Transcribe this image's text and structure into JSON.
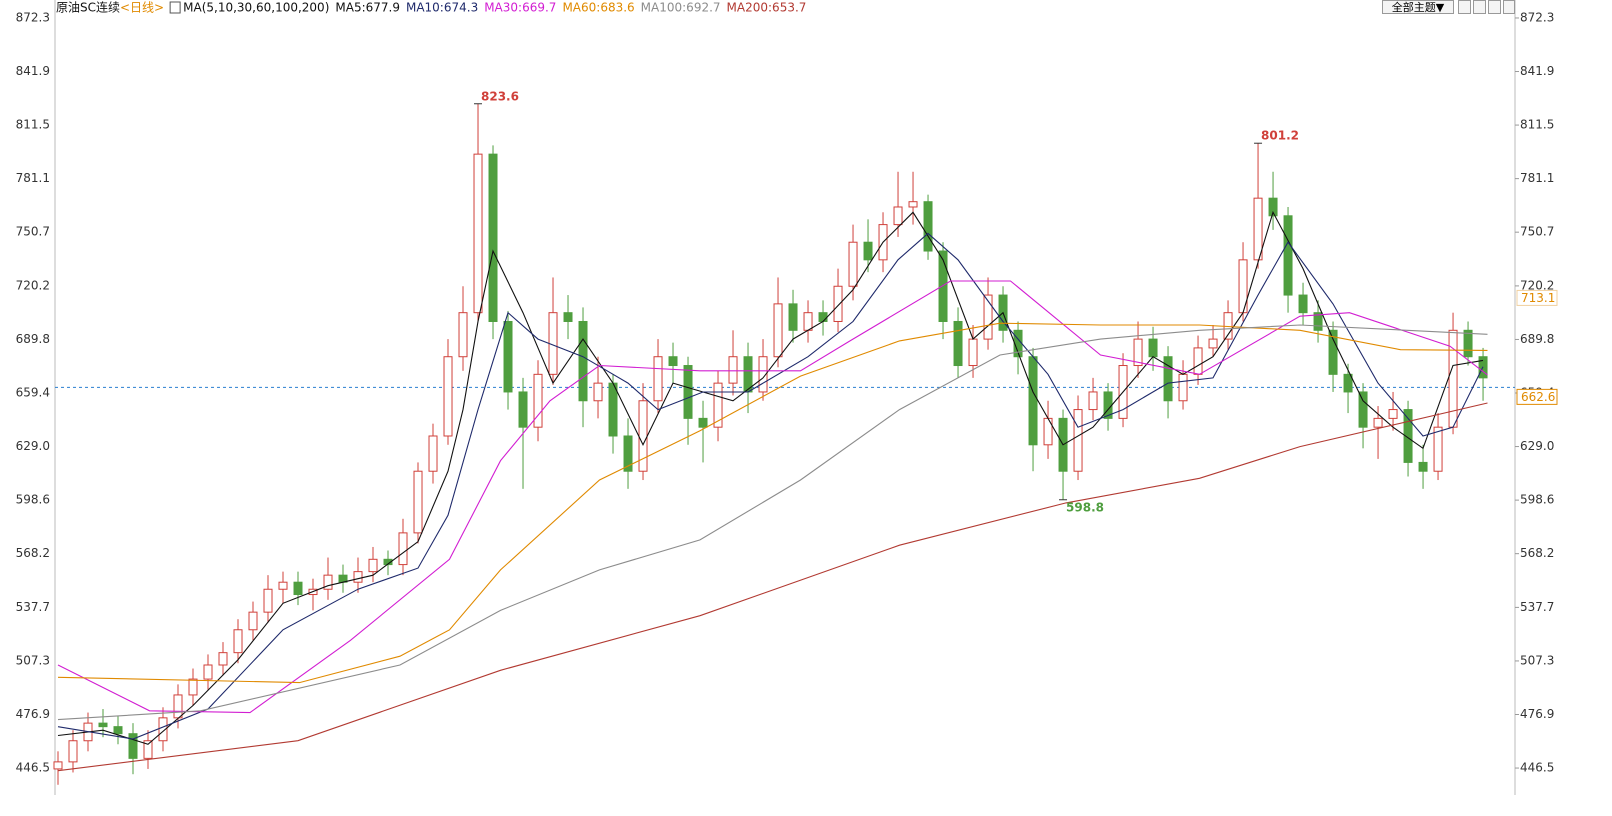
{
  "chart_data": {
    "type": "candlestick",
    "title": "原油SC连续",
    "period": "<日线>",
    "indicator": "MA(5,10,30,60,100,200)",
    "toolbar": {
      "theme_button": "全部主题▼"
    },
    "up_color": "#d0403a",
    "down_color": "#4f9e3f",
    "xlim": [
      -0.2,
      97.13
    ],
    "ylim": [
      431.2,
      882.5
    ],
    "yticks": [
      872.3,
      841.9,
      811.5,
      781.1,
      750.7,
      720.2,
      689.8,
      659.4,
      {
        "value": 629,
        "label": "629.0"
      },
      598.6,
      568.2,
      537.7,
      507.3,
      476.9,
      446.5
    ],
    "open": [
      446,
      450,
      462,
      472,
      470,
      466,
      452,
      462,
      475,
      488,
      497,
      505,
      512,
      525,
      535,
      548,
      552,
      545,
      548,
      556,
      552,
      558,
      565,
      562,
      580,
      615,
      635,
      680,
      705,
      795,
      700,
      660,
      640,
      670,
      705,
      700,
      655,
      665,
      635,
      615,
      655,
      680,
      675,
      645,
      640,
      665,
      680,
      660,
      680,
      710,
      695,
      705,
      700,
      720,
      745,
      735,
      755,
      765,
      768,
      740,
      700,
      675,
      690,
      715,
      695,
      680,
      630,
      645,
      615,
      650,
      660,
      645,
      675,
      690,
      680,
      655,
      670,
      685,
      690,
      705,
      735,
      770,
      760,
      715,
      705,
      695,
      670,
      660,
      640,
      645,
      650,
      620,
      615,
      640,
      695,
      680
    ],
    "high": [
      456,
      468,
      478,
      480,
      476,
      472,
      468,
      481,
      494,
      503,
      511,
      518,
      531,
      541,
      556,
      558,
      558,
      554,
      566,
      562,
      566,
      572,
      570,
      588,
      620,
      642,
      690,
      720,
      823.6,
      800,
      706,
      668,
      678,
      725,
      715,
      708,
      680,
      670,
      645,
      665,
      690,
      688,
      680,
      655,
      672,
      695,
      688,
      690,
      725,
      718,
      712,
      712,
      730,
      755,
      758,
      762,
      785,
      785,
      772,
      745,
      708,
      698,
      725,
      720,
      700,
      685,
      655,
      650,
      658,
      668,
      665,
      682,
      700,
      697,
      686,
      678,
      692,
      698,
      712,
      745,
      801.2,
      785,
      765,
      722,
      712,
      700,
      676,
      665,
      652,
      660,
      655,
      630,
      648,
      705,
      700,
      685
    ],
    "low": [
      437,
      444,
      456,
      464,
      460,
      443,
      446,
      456,
      469,
      482,
      491,
      499,
      506,
      519,
      529,
      540,
      539,
      536,
      542,
      546,
      546,
      552,
      556,
      556,
      574,
      608,
      630,
      672,
      700,
      690,
      650,
      605,
      632,
      664,
      690,
      640,
      645,
      625,
      605,
      610,
      648,
      665,
      630,
      620,
      632,
      658,
      648,
      655,
      674,
      688,
      688,
      692,
      694,
      712,
      728,
      728,
      748,
      755,
      735,
      690,
      668,
      668,
      684,
      688,
      670,
      615,
      622,
      598.8,
      610,
      644,
      638,
      640,
      668,
      672,
      645,
      650,
      664,
      680,
      684,
      700,
      730,
      752,
      705,
      698,
      688,
      660,
      648,
      628,
      622,
      638,
      612,
      605,
      610,
      636,
      675,
      655
    ],
    "close": [
      450,
      462,
      472,
      470,
      466,
      452,
      462,
      475,
      488,
      497,
      505,
      512,
      525,
      535,
      548,
      552,
      545,
      548,
      556,
      552,
      558,
      565,
      562,
      580,
      615,
      635,
      680,
      705,
      795,
      700,
      660,
      640,
      670,
      705,
      700,
      655,
      665,
      635,
      615,
      655,
      680,
      675,
      645,
      640,
      665,
      680,
      660,
      680,
      710,
      695,
      705,
      700,
      720,
      745,
      735,
      755,
      765,
      768,
      740,
      700,
      675,
      690,
      715,
      695,
      680,
      630,
      645,
      615,
      650,
      660,
      645,
      675,
      690,
      680,
      655,
      670,
      685,
      690,
      705,
      735,
      770,
      760,
      715,
      705,
      695,
      670,
      660,
      640,
      645,
      650,
      620,
      615,
      640,
      695,
      680,
      668
    ],
    "series": [
      {
        "name": "MA5:677.9",
        "color": "#111111",
        "x": [
          0,
          3,
          6,
          9,
          12,
          15,
          18,
          21,
          24,
          26,
          27,
          28,
          29,
          31,
          33,
          35,
          37,
          39,
          41,
          43,
          45,
          47,
          49,
          51,
          53,
          55,
          57,
          59,
          61,
          63,
          65,
          67,
          69,
          71,
          73,
          75,
          77,
          79,
          81,
          83,
          85,
          87,
          89,
          91,
          93,
          95
        ],
        "values": [
          465,
          468,
          460,
          482,
          508,
          540,
          550,
          556,
          575,
          615,
          650,
          700,
          740,
          705,
          665,
          690,
          665,
          630,
          665,
          660,
          655,
          668,
          690,
          700,
          718,
          745,
          762,
          735,
          690,
          705,
          660,
          630,
          640,
          660,
          680,
          670,
          680,
          705,
          762,
          730,
          690,
          655,
          640,
          628,
          675,
          677.9
        ]
      },
      {
        "name": "MA10:674.3",
        "color": "#1f2a6b",
        "x": [
          0,
          5,
          10,
          15,
          20,
          24,
          26,
          28,
          30,
          32,
          35,
          38,
          40,
          43,
          46,
          50,
          53,
          56,
          58,
          60,
          63,
          66,
          68,
          71,
          74,
          77,
          80,
          82,
          85,
          88,
          91,
          93,
          95
        ],
        "values": [
          470,
          463,
          480,
          525,
          548,
          560,
          590,
          650,
          705,
          690,
          680,
          665,
          650,
          660,
          660,
          680,
          700,
          735,
          750,
          735,
          700,
          670,
          640,
          650,
          665,
          668,
          715,
          745,
          710,
          665,
          635,
          640,
          674.3
        ]
      },
      {
        "name": "MA30:669.7",
        "color": "#d21ed2",
        "x": [
          0,
          6.1,
          12.8,
          19.5,
          26.1,
          29.5,
          32.8,
          36.1,
          42.8,
          49.5,
          52.8,
          59.5,
          63.5,
          69.5,
          76.1,
          82.8,
          86.1,
          92.8,
          95.3
        ],
        "values": [
          505,
          479,
          478,
          519,
          565,
          621,
          655,
          675,
          672,
          672,
          689,
          723,
          723,
          681,
          670,
          703,
          705,
          686,
          669.7
        ]
      },
      {
        "name": "MA60:683.6",
        "color": "#e08a00",
        "x": [
          0,
          16.1,
          22.8,
          26.1,
          29.5,
          36.1,
          42.8,
          49.5,
          56.1,
          62.8,
          69.5,
          76.1,
          82.8,
          89.5,
          95.3
        ],
        "values": [
          498,
          495,
          510,
          525,
          559,
          610,
          638,
          669,
          689,
          699,
          698,
          698,
          695,
          684,
          683.6
        ]
      },
      {
        "name": "MA100:692.7",
        "color": "#8c8c8c",
        "x": [
          0,
          9.5,
          22.8,
          29.5,
          36.1,
          42.8,
          49.5,
          56.1,
          62.8,
          69.5,
          76.1,
          82.8,
          95.3
        ],
        "values": [
          474,
          479,
          505,
          536,
          559,
          576,
          610,
          650,
          681,
          690,
          695,
          698,
          692.7
        ]
      },
      {
        "name": "MA200:653.7",
        "color": "#b23a32",
        "x": [
          0,
          16,
          29.5,
          42.8,
          56.1,
          67.2,
          76.1,
          82.8,
          95.3
        ],
        "values": [
          445,
          462,
          502,
          533,
          573,
          597,
          611,
          629,
          653.7
        ]
      }
    ],
    "annotations": [
      {
        "candle": 28,
        "value": 823.6,
        "label": "823.6",
        "color": "#d0403a",
        "side": "high"
      },
      {
        "candle": 80,
        "value": 801.2,
        "label": "801.2",
        "color": "#d0403a",
        "side": "high"
      },
      {
        "candle": 67,
        "value": 598.8,
        "label": "598.8",
        "color": "#4f9e3f",
        "side": "low"
      }
    ],
    "price_line": {
      "value": 662.6,
      "label": "662.6",
      "color": "#2a7fd0"
    },
    "marker": {
      "value": 713.1,
      "label": "713.1",
      "color": "#e08a00"
    }
  }
}
